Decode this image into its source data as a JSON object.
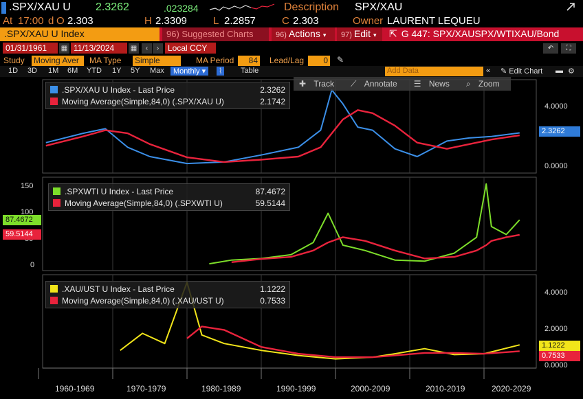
{
  "header": {
    "ticker": ".SPX/XAU U",
    "last": "2.3262",
    "change": ".023284",
    "desc_label": "Description",
    "desc_value": "SPX/XAU"
  },
  "ohlc": {
    "at_label": "At",
    "time": "17:00",
    "d_label": "d",
    "o_label": "O",
    "o": "2.303",
    "h_label": "H",
    "h": "2.3309",
    "l_label": "L",
    "l": "2.2857",
    "c_label": "C",
    "c": "2.303",
    "owner_label": "Owner",
    "owner": "LAURENT LEQUEU"
  },
  "toolbar": {
    "index_label": ".SPX/XAU U Index",
    "suggested": "96) Suggested Charts",
    "actions_num": "96)",
    "actions": "Actions",
    "edit_num": "97)",
    "edit": "Edit",
    "graph": "G 447: SPX/XAUSPX/WTIXAU/Bond"
  },
  "range": {
    "start": "01/31/1961",
    "end": "11/13/2024",
    "ccy": "Local CCY"
  },
  "study": {
    "study_label": "Study",
    "study_value": "Moving Aver",
    "ma_type_label": "MA Type",
    "ma_type_value": "Simple",
    "ma_period_label": "MA Period",
    "ma_period_value": "84",
    "lead_lag_label": "Lead/Lag",
    "lead_lag_value": "0"
  },
  "timescale": {
    "buttons": [
      "1D",
      "3D",
      "1M",
      "6M",
      "YTD",
      "1Y",
      "5Y",
      "Max"
    ],
    "frequency": "Monthly",
    "table": "Table",
    "add_data": "Add Data",
    "edit_chart": "Edit Chart"
  },
  "chart_tools": [
    "Track",
    "Annotate",
    "News",
    "Zoom"
  ],
  "chart_data": [
    {
      "type": "line",
      "legend": [
        {
          "name": ".SPX/XAU U Index - Last Price",
          "value": "2.3262",
          "color": "#3b8fe8"
        },
        {
          "name": "Moving Average(Simple,84,0) (.SPX/XAU U)",
          "value": "2.1742",
          "color": "#e8233c"
        }
      ],
      "y_ticks": [
        "4.0000",
        "0.0000"
      ],
      "ylim": [
        0,
        5.5
      ],
      "last_label": "2.3262",
      "x": [
        1961,
        1966,
        1969,
        1972,
        1975,
        1980,
        1985,
        1990,
        1995,
        1998,
        1999.5,
        2001,
        2003,
        2005,
        2008,
        2011,
        2015,
        2018,
        2021,
        2024.8
      ],
      "series": [
        {
          "name": ".SPX/XAU U Index - Last Price",
          "values": [
            1.7,
            2.3,
            2.6,
            1.4,
            0.8,
            0.35,
            0.45,
            0.9,
            1.4,
            2.5,
            5.1,
            4.2,
            2.7,
            2.5,
            1.3,
            0.8,
            1.8,
            2.0,
            2.1,
            2.33
          ]
        },
        {
          "name": "Moving Average(Simple,84,0) (.SPX/XAU U)",
          "values": [
            1.5,
            2.1,
            2.5,
            2.3,
            1.6,
            0.75,
            0.45,
            0.6,
            0.8,
            1.4,
            2.3,
            3.2,
            3.8,
            3.6,
            2.8,
            1.7,
            1.3,
            1.6,
            1.9,
            2.17
          ]
        }
      ]
    },
    {
      "type": "line",
      "legend": [
        {
          "name": ".SPXWTI U Index - Last Price",
          "value": "87.4672",
          "color": "#7dde2a"
        },
        {
          "name": "Moving Average(Simple,84,0) (.SPXWTI U)",
          "value": "59.5144",
          "color": "#e8233c"
        }
      ],
      "y_ticks": [
        "150",
        "100",
        "50",
        "0"
      ],
      "ylim": [
        0,
        160
      ],
      "left_labels": [
        "87.4672",
        "59.5144"
      ],
      "x": [
        1983,
        1986,
        1990,
        1994,
        1997,
        1999,
        2001,
        2004,
        2008,
        2012,
        2016,
        2019,
        2020.3,
        2021,
        2023,
        2024.8
      ],
      "series": [
        {
          "name": ".SPXWTI U Index - Last Price",
          "values": [
            5,
            12,
            15,
            22,
            45,
            100,
            40,
            30,
            12,
            10,
            25,
            55,
            155,
            75,
            60,
            87.5
          ]
        },
        {
          "name": "Moving Average(Simple,84,0) (.SPXWTI U)",
          "values": [
            null,
            8,
            14,
            18,
            30,
            45,
            55,
            48,
            30,
            15,
            18,
            30,
            40,
            48,
            55,
            59.5
          ]
        }
      ]
    },
    {
      "type": "line",
      "legend": [
        {
          "name": ".XAU/UST U Index - Last Price",
          "value": "1.1222",
          "color": "#f2e51a"
        },
        {
          "name": "Moving Average(Simple,84,0) (.XAU/UST U)",
          "value": "0.7533",
          "color": "#e8233c"
        }
      ],
      "y_ticks": [
        "4.0000",
        "2.0000",
        "0.0000"
      ],
      "ylim": [
        0,
        5
      ],
      "last_labels": [
        "1.1222",
        "0.7533"
      ],
      "x": [
        1971,
        1974,
        1977,
        1980,
        1982,
        1985,
        1990,
        1995,
        2000,
        2005,
        2008,
        2012,
        2016,
        2020,
        2024.8
      ],
      "series": [
        {
          "name": ".XAU/UST U Index - Last Price",
          "values": [
            0.8,
            1.8,
            1.2,
            4.8,
            1.7,
            1.2,
            0.8,
            0.5,
            0.3,
            0.4,
            0.6,
            0.9,
            0.55,
            0.6,
            1.12
          ]
        },
        {
          "name": "Moving Average(Simple,84,0) (.XAU/UST U)",
          "values": [
            null,
            null,
            null,
            1.5,
            2.2,
            2.0,
            1.0,
            0.6,
            0.4,
            0.4,
            0.5,
            0.65,
            0.65,
            0.6,
            0.75
          ]
        }
      ]
    }
  ],
  "x_axis": {
    "labels": [
      "1960-1969",
      "1970-1979",
      "1980-1989",
      "1990-1999",
      "2000-2009",
      "2010-2019",
      "2020-2029"
    ]
  },
  "colors": {
    "blue": "#3b8fe8",
    "red": "#e8233c",
    "green": "#7dde2a",
    "yellow": "#f2e51a",
    "orange": "#f39c12"
  }
}
